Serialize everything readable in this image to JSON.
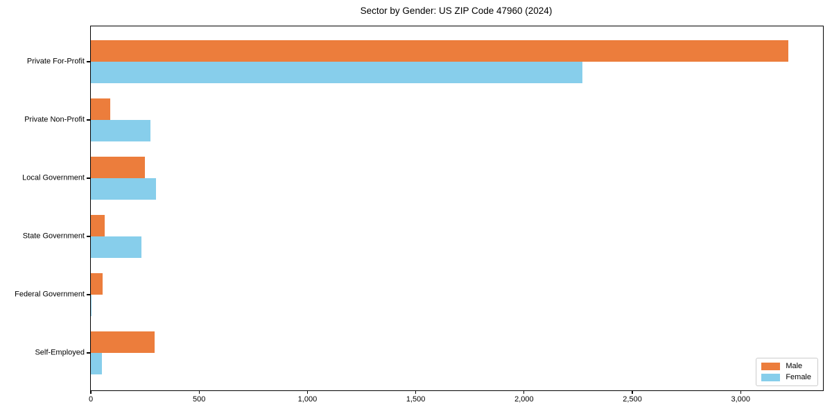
{
  "title": "Sector by Gender: US ZIP Code 47960 (2024)",
  "chart_data": {
    "type": "bar",
    "orientation": "horizontal",
    "title": "Sector by Gender: US ZIP Code 47960 (2024)",
    "xlabel": "",
    "ylabel": "",
    "categories": [
      "Private For-Profit",
      "Private Non-Profit",
      "Local Government",
      "State Government",
      "Federal Government",
      "Self-Employed"
    ],
    "series": [
      {
        "name": "Male",
        "color": "#ec7d3c",
        "values": [
          3220,
          90,
          250,
          65,
          55,
          295
        ]
      },
      {
        "name": "Female",
        "color": "#87ceeb",
        "values": [
          2270,
          275,
          300,
          235,
          3,
          50
        ]
      }
    ],
    "xlim": [
      0,
      3380
    ],
    "x_ticks": [
      0,
      500,
      1000,
      1500,
      2000,
      2500,
      3000
    ],
    "x_tick_labels": [
      "0",
      "500",
      "1,000",
      "1,500",
      "2,000",
      "2,500",
      "3,000"
    ],
    "grid": false,
    "legend_position": "lower right"
  },
  "legend": {
    "items": [
      {
        "label": "Male",
        "color": "#ec7d3c"
      },
      {
        "label": "Female",
        "color": "#87ceeb"
      }
    ]
  }
}
